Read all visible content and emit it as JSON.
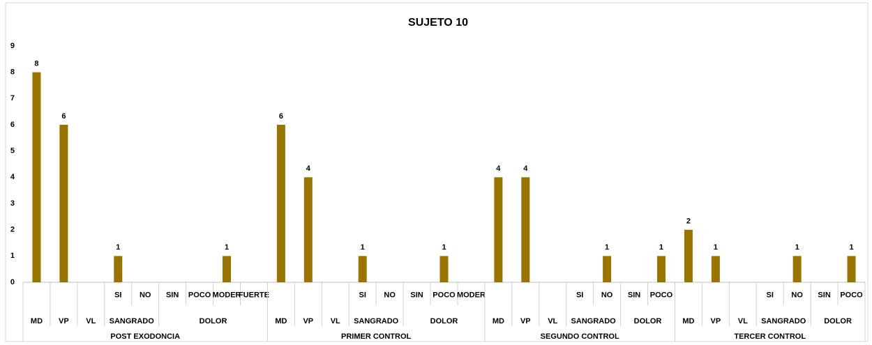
{
  "chart_data": {
    "type": "bar",
    "title": "SUJETO 10",
    "groups": [
      {
        "name": "POST EXODONCIA",
        "items": [
          "MD",
          "VP",
          "VL",
          {
            "name": "SANGRADO",
            "categories": [
              "SI",
              "NO"
            ]
          },
          {
            "name": "DOLOR",
            "categories": [
              "SIN",
              "POCO",
              "MODER",
              "FUERTE"
            ]
          }
        ]
      },
      {
        "name": "PRIMER CONTROL",
        "items": [
          "MD",
          "VP",
          "VL",
          {
            "name": "SANGRADO",
            "categories": [
              "SI",
              "NO"
            ]
          },
          {
            "name": "DOLOR",
            "categories": [
              "SIN",
              "POCO",
              "MODER"
            ]
          }
        ]
      },
      {
        "name": "SEGUNDO CONTROL",
        "items": [
          "MD",
          "VP",
          "VL",
          {
            "name": "SANGRADO",
            "categories": [
              "SI",
              "NO"
            ]
          },
          {
            "name": "DOLOR",
            "categories": [
              "SIN",
              "POCO"
            ]
          }
        ]
      },
      {
        "name": "TERCER CONTROL",
        "items": [
          "MD",
          "VP",
          "VL",
          {
            "name": "SANGRADO",
            "categories": [
              "SI",
              "NO"
            ]
          },
          {
            "name": "DOLOR",
            "categories": [
              "SIN",
              "POCO"
            ]
          }
        ]
      }
    ],
    "values": [
      8,
      6,
      null,
      1,
      null,
      null,
      null,
      1,
      null,
      6,
      4,
      null,
      1,
      null,
      null,
      1,
      null,
      4,
      4,
      null,
      null,
      1,
      null,
      1,
      2,
      1,
      null,
      null,
      1,
      null,
      1
    ],
    "color": "#9a7400",
    "ylim": [
      0,
      9
    ],
    "yticks": [
      0,
      1,
      2,
      3,
      4,
      5,
      6,
      7,
      8,
      9
    ],
    "grid": false
  }
}
